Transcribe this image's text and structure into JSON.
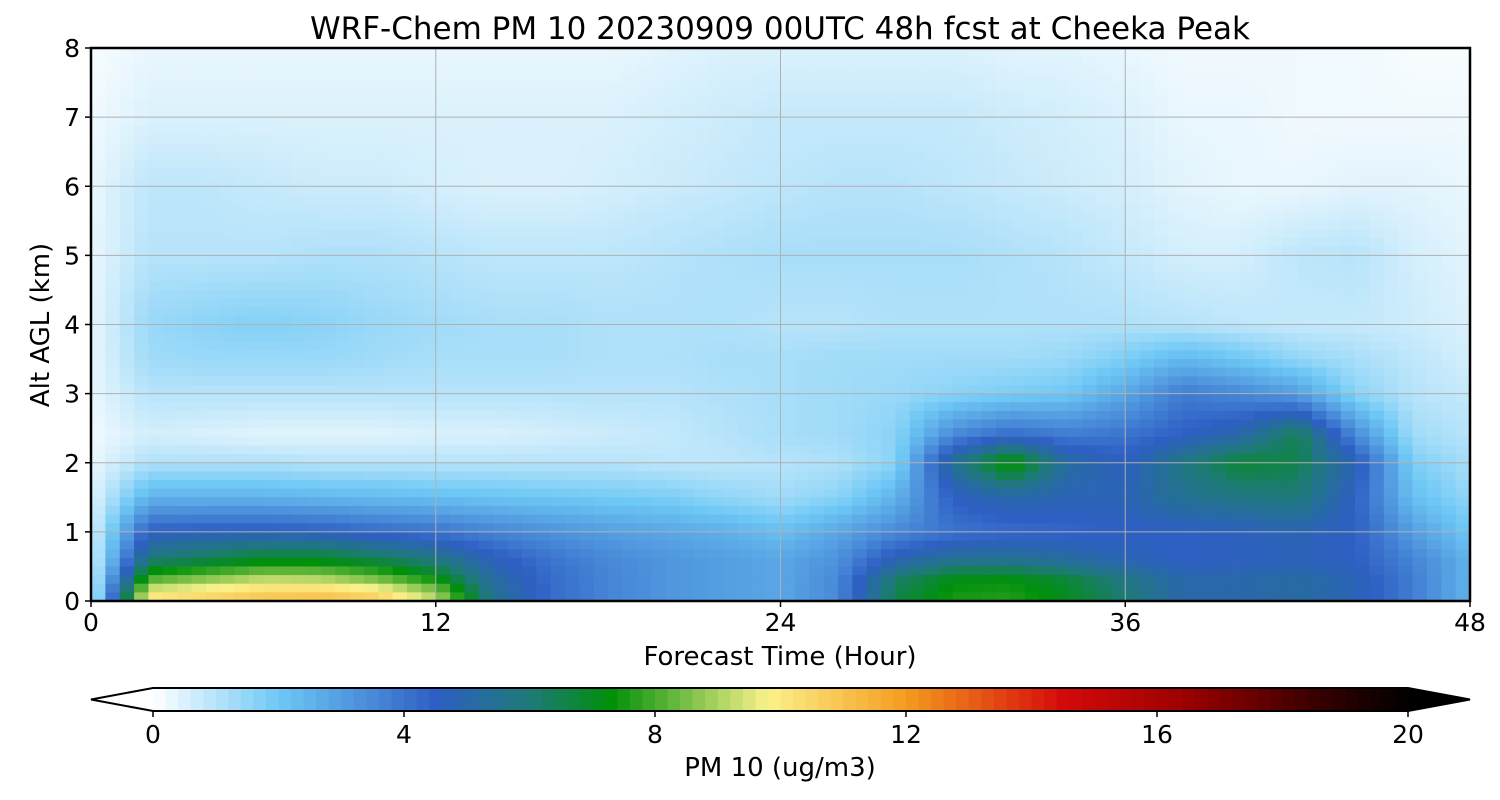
{
  "chart_data": {
    "type": "heatmap",
    "title": "WRF-Chem PM 10  20230909 00UTC 48h fcst at Cheeka Peak",
    "xlabel": "Forecast Time (Hour)",
    "ylabel": "Alt AGL (km)",
    "xlim": [
      0,
      48
    ],
    "ylim": [
      0,
      8
    ],
    "x_ticks": [
      0,
      12,
      24,
      36,
      48
    ],
    "y_ticks": [
      0,
      1,
      2,
      3,
      4,
      5,
      6,
      7,
      8
    ],
    "grid": true,
    "colorbar": {
      "label": "PM 10  (ug/m3)",
      "range": [
        0,
        20
      ],
      "ticks": [
        0,
        4,
        8,
        12,
        16,
        20
      ],
      "extend": "both",
      "orientation": "horizontal",
      "placement": "bottom",
      "color_stops": [
        {
          "value": 0,
          "color": "#ffffff"
        },
        {
          "value": 2,
          "color": "#6ec8f5"
        },
        {
          "value": 4.5,
          "color": "#2e5fc4"
        },
        {
          "value": 6,
          "color": "#1e7a78"
        },
        {
          "value": 7.3,
          "color": "#00900a"
        },
        {
          "value": 9.8,
          "color": "#fbf28a"
        },
        {
          "value": 12,
          "color": "#f59b1e"
        },
        {
          "value": 14.5,
          "color": "#d40a0a"
        },
        {
          "value": 16.5,
          "color": "#9a0000"
        },
        {
          "value": 18.5,
          "color": "#3a0000"
        },
        {
          "value": 20,
          "color": "#000000"
        }
      ]
    },
    "hours": [
      0,
      2,
      4,
      6,
      8,
      10,
      12,
      14,
      16,
      18,
      20,
      22,
      24,
      26,
      28,
      30,
      32,
      34,
      36,
      38,
      40,
      42,
      44,
      46,
      48
    ],
    "altitudes_km": [
      0.1,
      0.3,
      0.6,
      1.0,
      1.5,
      2.0,
      2.4,
      3.0,
      3.5,
      4.0,
      5.0,
      6.0,
      7.0,
      8.0
    ],
    "pm10_values": [
      [
        0.5,
        10.0,
        10.4,
        10.8,
        10.9,
        10.5,
        9.0,
        5.5,
        4.2,
        3.6,
        3.2,
        3.0,
        2.8,
        3.5,
        6.5,
        7.5,
        7.6,
        7.0,
        6.0,
        5.0,
        5.0,
        5.2,
        4.8,
        3.8,
        2.5
      ],
      [
        0.5,
        8.2,
        8.8,
        9.3,
        9.2,
        8.6,
        7.5,
        5.2,
        4.2,
        3.6,
        3.2,
        3.0,
        2.8,
        3.5,
        6.2,
        7.2,
        7.3,
        6.8,
        5.8,
        5.0,
        5.0,
        5.2,
        4.8,
        3.8,
        2.5
      ],
      [
        0.5,
        6.0,
        6.5,
        7.0,
        7.0,
        6.5,
        5.8,
        4.7,
        4.0,
        3.5,
        3.2,
        3.0,
        2.8,
        3.3,
        4.8,
        5.5,
        5.5,
        5.2,
        4.8,
        4.5,
        4.6,
        4.7,
        4.5,
        3.6,
        2.5
      ],
      [
        0.5,
        4.5,
        4.6,
        4.6,
        4.5,
        4.2,
        4.0,
        3.6,
        3.3,
        3.0,
        2.8,
        2.6,
        2.2,
        2.8,
        3.5,
        4.0,
        4.2,
        4.3,
        4.5,
        4.5,
        4.6,
        4.8,
        4.5,
        3.0,
        2.0
      ],
      [
        0.4,
        2.5,
        2.5,
        2.5,
        2.4,
        2.3,
        2.2,
        2.1,
        2.0,
        1.9,
        1.8,
        1.5,
        1.3,
        1.6,
        2.5,
        4.5,
        5.0,
        4.8,
        4.8,
        5.5,
        5.8,
        6.0,
        4.5,
        2.2,
        1.5
      ],
      [
        0.3,
        1.1,
        1.1,
        1.1,
        1.0,
        1.0,
        1.0,
        1.0,
        1.0,
        1.0,
        0.9,
        0.9,
        1.0,
        1.1,
        1.6,
        5.5,
        7.6,
        5.2,
        4.6,
        5.8,
        6.8,
        6.5,
        4.8,
        1.8,
        1.2
      ],
      [
        0.2,
        0.6,
        0.5,
        0.4,
        0.4,
        0.4,
        0.5,
        0.5,
        0.6,
        0.7,
        0.8,
        1.0,
        1.2,
        1.3,
        1.6,
        3.5,
        4.2,
        3.8,
        4.0,
        4.5,
        5.0,
        6.5,
        3.5,
        1.3,
        1.0
      ],
      [
        0.3,
        1.0,
        1.0,
        1.0,
        1.0,
        1.0,
        1.0,
        1.0,
        1.0,
        1.0,
        1.0,
        1.1,
        1.2,
        1.3,
        1.4,
        1.6,
        1.8,
        2.0,
        2.8,
        3.8,
        3.5,
        3.0,
        1.6,
        1.0,
        0.8
      ],
      [
        0.3,
        1.3,
        1.4,
        1.4,
        1.4,
        1.3,
        1.2,
        1.2,
        1.2,
        1.1,
        1.1,
        1.2,
        1.2,
        1.3,
        1.3,
        1.3,
        1.3,
        1.4,
        1.8,
        2.4,
        2.0,
        1.5,
        1.2,
        0.9,
        0.6
      ],
      [
        0.3,
        1.4,
        1.6,
        1.7,
        1.6,
        1.4,
        1.3,
        1.2,
        1.2,
        1.1,
        1.1,
        1.1,
        1.0,
        1.0,
        1.1,
        1.1,
        1.1,
        1.1,
        1.1,
        1.0,
        0.9,
        0.8,
        0.8,
        0.7,
        0.5
      ],
      [
        0.3,
        1.0,
        1.0,
        1.0,
        1.1,
        1.1,
        1.0,
        0.9,
        0.9,
        0.9,
        1.0,
        1.1,
        1.2,
        1.2,
        1.2,
        1.2,
        1.1,
        1.0,
        0.8,
        0.6,
        0.6,
        0.9,
        1.0,
        0.6,
        0.4
      ],
      [
        0.3,
        0.9,
        0.9,
        0.8,
        0.7,
        0.7,
        0.6,
        0.5,
        0.5,
        0.6,
        0.7,
        0.8,
        0.9,
        1.0,
        1.0,
        0.9,
        0.8,
        0.7,
        0.6,
        0.4,
        0.3,
        0.3,
        0.4,
        0.4,
        0.3
      ],
      [
        0.2,
        0.5,
        0.5,
        0.5,
        0.5,
        0.5,
        0.5,
        0.5,
        0.5,
        0.5,
        0.6,
        0.7,
        0.8,
        0.8,
        0.8,
        0.8,
        0.7,
        0.6,
        0.5,
        0.3,
        0.3,
        0.2,
        0.2,
        0.2,
        0.2
      ],
      [
        0.1,
        0.3,
        0.3,
        0.3,
        0.3,
        0.3,
        0.3,
        0.3,
        0.3,
        0.3,
        0.4,
        0.5,
        0.5,
        0.5,
        0.5,
        0.5,
        0.4,
        0.4,
        0.3,
        0.2,
        0.2,
        0.2,
        0.2,
        0.1,
        0.1
      ]
    ]
  }
}
